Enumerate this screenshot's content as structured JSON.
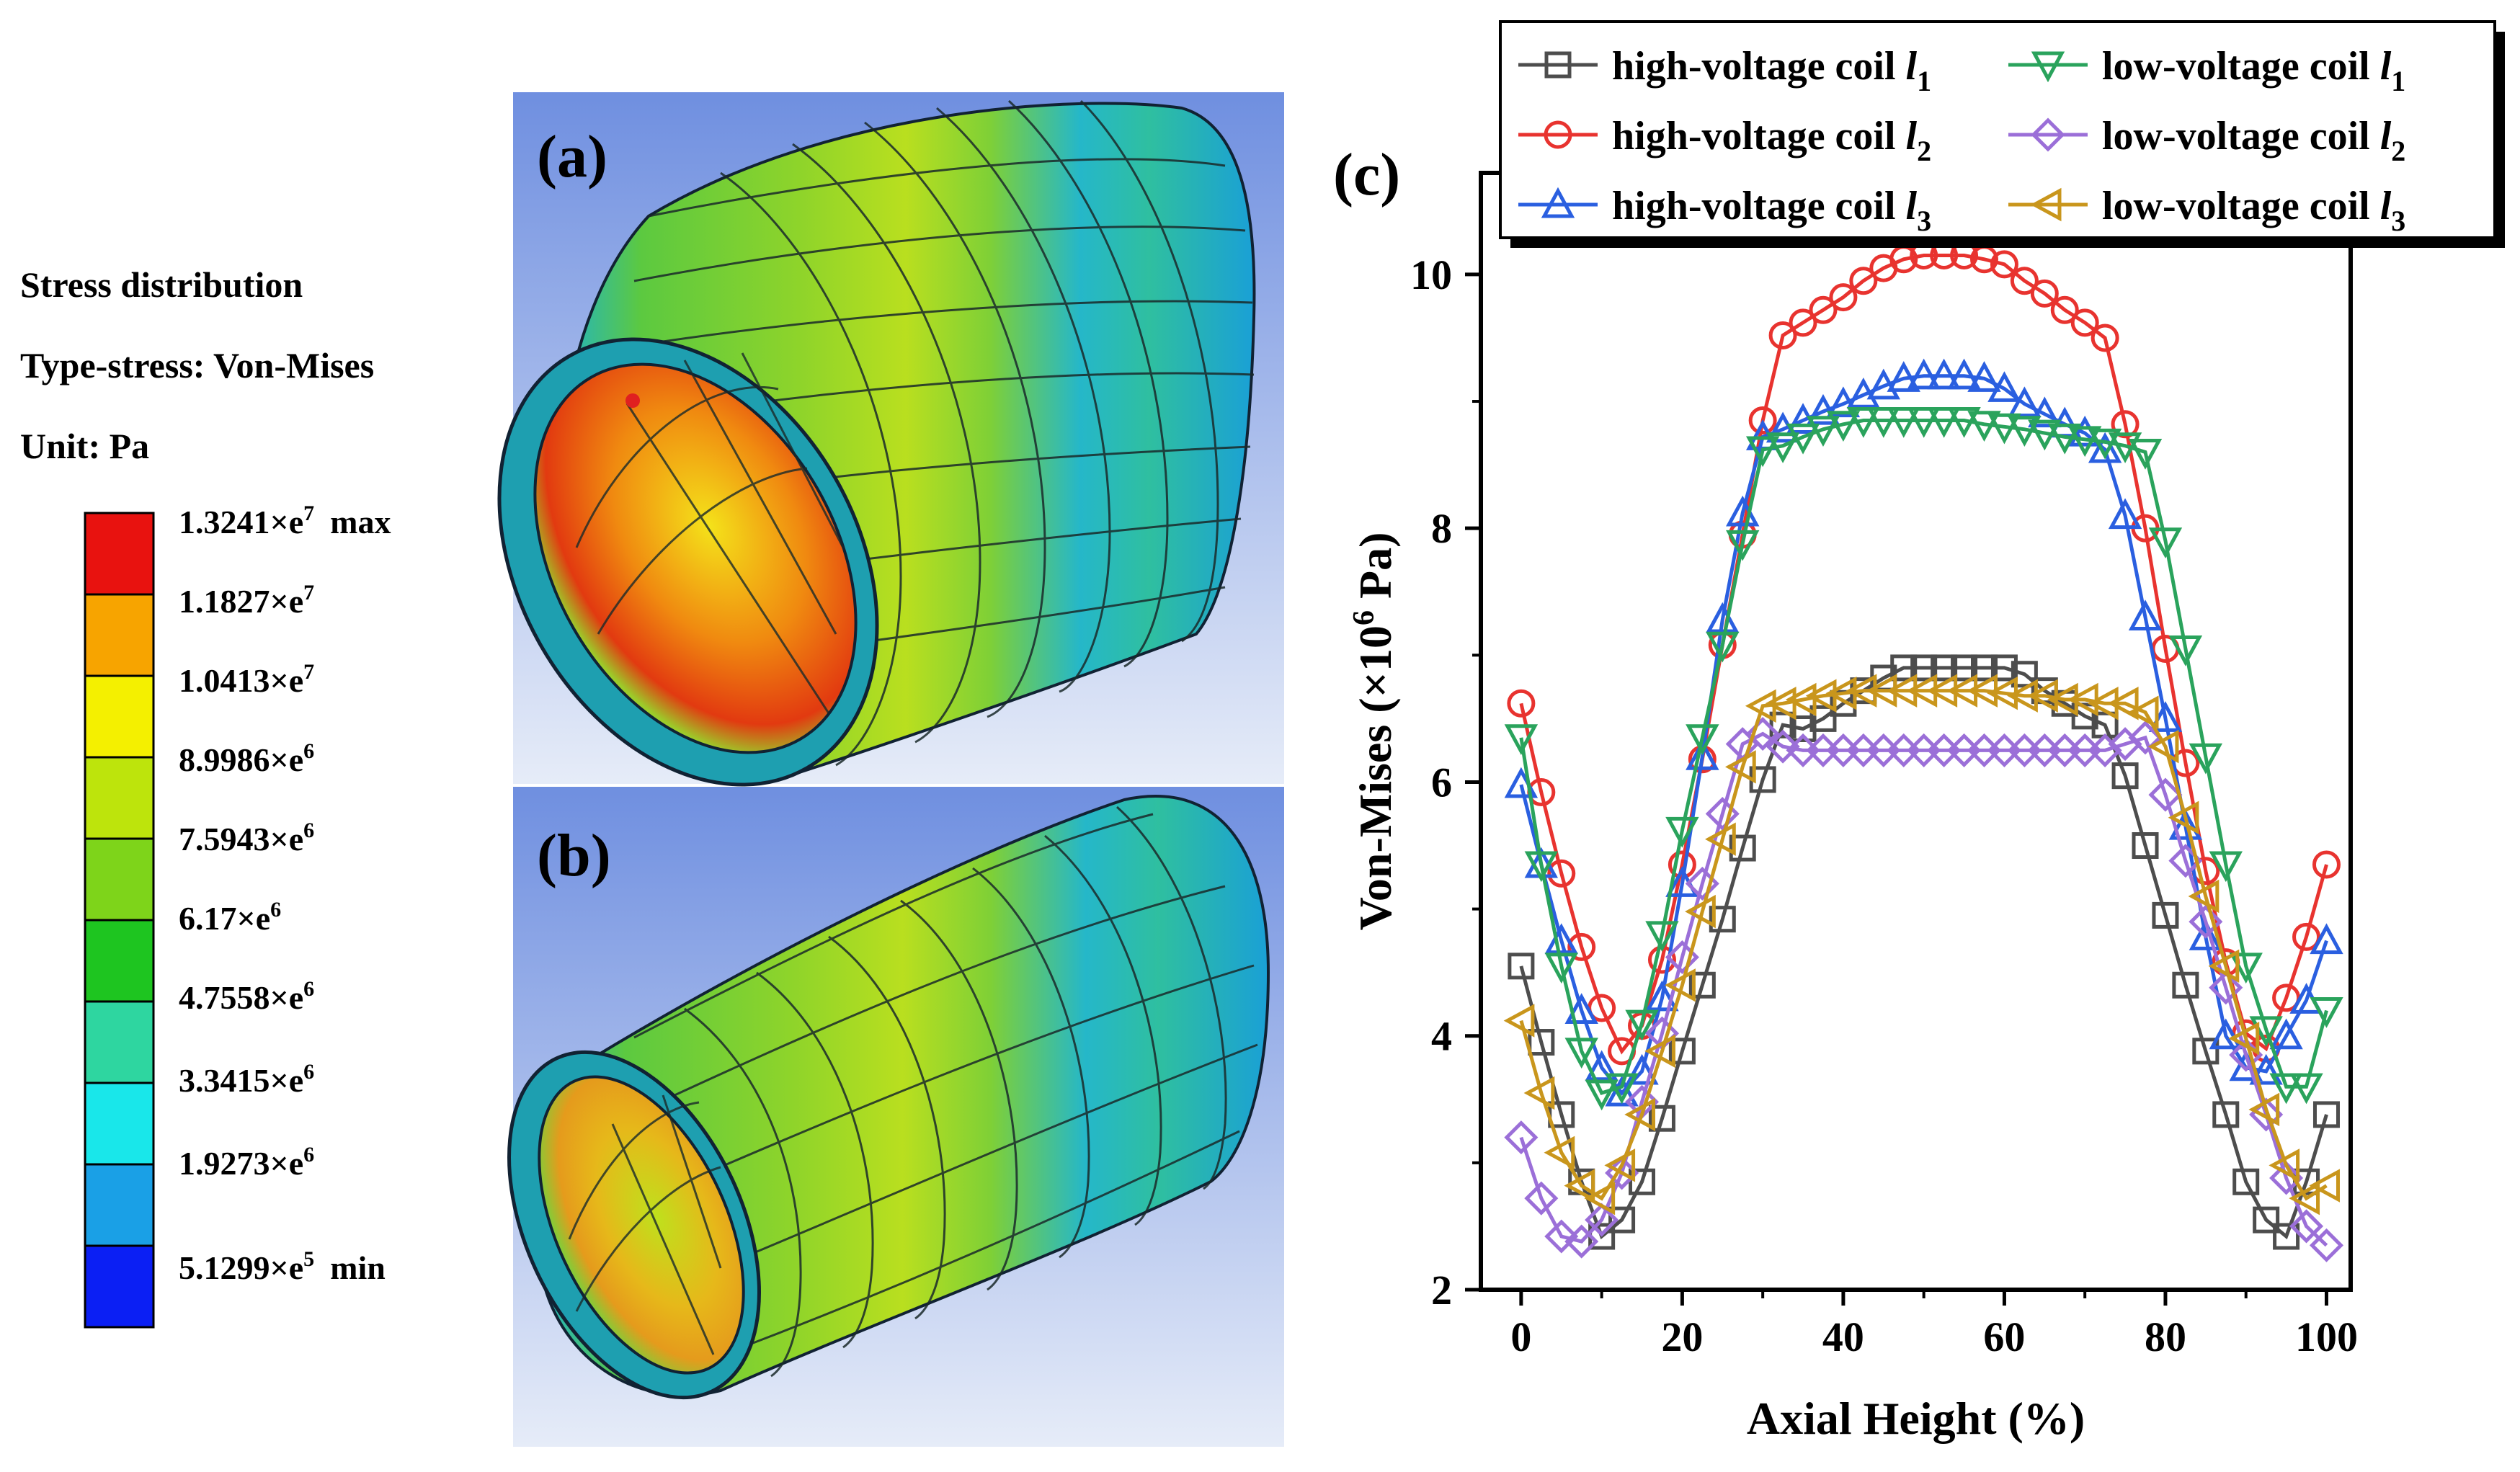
{
  "legend_panel": {
    "title_line1": "Stress distribution",
    "title_line2": "Type-stress: Von-Mises",
    "title_line3": "Unit: Pa",
    "entries": [
      {
        "label": "1.3241×e",
        "exp": "7",
        "suffix": "max",
        "color": "#e8120f"
      },
      {
        "label": "1.1827×e",
        "exp": "7",
        "suffix": "",
        "color": "#f7a400"
      },
      {
        "label": "1.0413×e",
        "exp": "7",
        "suffix": "",
        "color": "#f4f000"
      },
      {
        "label": "8.9986×e",
        "exp": "6",
        "suffix": "",
        "color": "#bde40c"
      },
      {
        "label": "7.5943×e",
        "exp": "6",
        "suffix": "",
        "color": "#7ed41a"
      },
      {
        "label": "6.17×e",
        "exp": "6",
        "suffix": "",
        "color": "#1ec520"
      },
      {
        "label": "4.7558×e",
        "exp": "6",
        "suffix": "",
        "color": "#2ed6a0"
      },
      {
        "label": "3.3415×e",
        "exp": "6",
        "suffix": "",
        "color": "#19e7ea"
      },
      {
        "label": "1.9273×e",
        "exp": "6",
        "suffix": "",
        "color": "#1aa0e6"
      },
      {
        "label": "5.1299×e",
        "exp": "5",
        "suffix": "min",
        "color": "#0b1ff4"
      }
    ]
  },
  "panels": {
    "a_label": "(a)",
    "b_label": "(b)",
    "c_label": "(c)"
  },
  "chart_data": {
    "type": "line",
    "title": "",
    "xlabel": "Axial Height (%)",
    "ylabel_main": "Von-Mises (×10",
    "ylabel_exp": "6",
    "ylabel_tail": " Pa)",
    "xlim": [
      -5,
      103
    ],
    "ylim": [
      2,
      10.8
    ],
    "xticks": [
      0,
      20,
      40,
      60,
      80,
      100
    ],
    "yticks": [
      2,
      4,
      6,
      8,
      10
    ],
    "x": [
      0,
      2.5,
      5,
      7.5,
      10,
      12.5,
      15,
      17.5,
      20,
      22.5,
      25,
      27.5,
      30,
      32.5,
      35,
      37.5,
      40,
      42.5,
      45,
      47.5,
      50,
      52.5,
      55,
      57.5,
      60,
      62.5,
      65,
      67.5,
      70,
      72.5,
      75,
      77.5,
      80,
      82.5,
      85,
      87.5,
      90,
      92.5,
      95,
      97.5,
      100
    ],
    "series": [
      {
        "name": "high-voltage coil",
        "sub": "1",
        "color": "#4d4d4d",
        "marker": "square",
        "values": [
          4.55,
          3.95,
          3.38,
          2.85,
          2.42,
          2.55,
          2.85,
          3.35,
          3.88,
          4.4,
          4.92,
          5.48,
          6.02,
          6.45,
          6.42,
          6.5,
          6.62,
          6.72,
          6.82,
          6.9,
          6.9,
          6.9,
          6.9,
          6.9,
          6.9,
          6.85,
          6.72,
          6.62,
          6.52,
          6.45,
          6.05,
          5.5,
          4.95,
          4.4,
          3.88,
          3.38,
          2.85,
          2.55,
          2.42,
          2.85,
          3.38
        ]
      },
      {
        "name": "high-voltage coil",
        "sub": "2",
        "color": "#e8332f",
        "marker": "circle",
        "values": [
          6.62,
          5.92,
          5.28,
          4.7,
          4.22,
          3.88,
          4.08,
          4.6,
          5.35,
          6.18,
          7.08,
          7.95,
          8.85,
          9.52,
          9.62,
          9.72,
          9.82,
          9.95,
          10.05,
          10.12,
          10.15,
          10.15,
          10.15,
          10.12,
          10.08,
          9.95,
          9.85,
          9.72,
          9.62,
          9.5,
          8.82,
          8.0,
          7.05,
          6.15,
          5.3,
          4.58,
          4.02,
          3.9,
          4.3,
          4.78,
          5.35
        ]
      },
      {
        "name": "high-voltage coil",
        "sub": "3",
        "color": "#2a5fe0",
        "marker": "triangle-up",
        "values": [
          5.98,
          5.35,
          4.75,
          4.2,
          3.75,
          3.55,
          3.72,
          4.3,
          5.2,
          6.2,
          7.28,
          8.12,
          8.72,
          8.78,
          8.85,
          8.92,
          8.98,
          9.05,
          9.12,
          9.18,
          9.2,
          9.2,
          9.2,
          9.18,
          9.1,
          8.98,
          8.9,
          8.82,
          8.75,
          8.62,
          8.1,
          7.3,
          6.5,
          5.65,
          4.78,
          4.0,
          3.75,
          3.72,
          4.0,
          4.28,
          4.75
        ]
      },
      {
        "name": "low-voltage coil",
        "sub": "1",
        "color": "#2aa35c",
        "marker": "triangle-down",
        "values": [
          6.35,
          5.35,
          4.55,
          3.88,
          3.55,
          3.6,
          4.1,
          4.8,
          5.62,
          6.35,
          7.08,
          7.88,
          8.62,
          8.65,
          8.72,
          8.78,
          8.82,
          8.85,
          8.85,
          8.85,
          8.85,
          8.85,
          8.85,
          8.82,
          8.8,
          8.78,
          8.75,
          8.72,
          8.7,
          8.68,
          8.65,
          8.6,
          7.9,
          7.05,
          6.2,
          5.35,
          4.55,
          4.05,
          3.6,
          3.6,
          4.2
        ]
      },
      {
        "name": "low-voltage coil",
        "sub": "2",
        "color": "#9b6fd8",
        "marker": "diamond",
        "values": [
          3.2,
          2.72,
          2.42,
          2.38,
          2.55,
          2.92,
          3.48,
          4.02,
          4.62,
          5.2,
          5.75,
          6.3,
          6.38,
          6.28,
          6.25,
          6.25,
          6.25,
          6.25,
          6.25,
          6.25,
          6.25,
          6.25,
          6.25,
          6.25,
          6.25,
          6.25,
          6.25,
          6.25,
          6.25,
          6.25,
          6.3,
          6.35,
          5.9,
          5.38,
          4.9,
          4.38,
          3.85,
          3.38,
          2.88,
          2.5,
          2.35
        ]
      },
      {
        "name": "low-voltage coil",
        "sub": "3",
        "color": "#c9961c",
        "marker": "triangle-left",
        "values": [
          4.12,
          3.55,
          3.08,
          2.82,
          2.72,
          2.98,
          3.38,
          3.88,
          4.4,
          4.98,
          5.55,
          6.12,
          6.6,
          6.62,
          6.65,
          6.68,
          6.7,
          6.72,
          6.72,
          6.72,
          6.72,
          6.72,
          6.72,
          6.72,
          6.7,
          6.68,
          6.68,
          6.65,
          6.65,
          6.62,
          6.62,
          6.55,
          6.28,
          5.72,
          5.1,
          4.55,
          3.98,
          3.42,
          2.98,
          2.72,
          2.82
        ]
      }
    ],
    "legend_position": "top"
  }
}
